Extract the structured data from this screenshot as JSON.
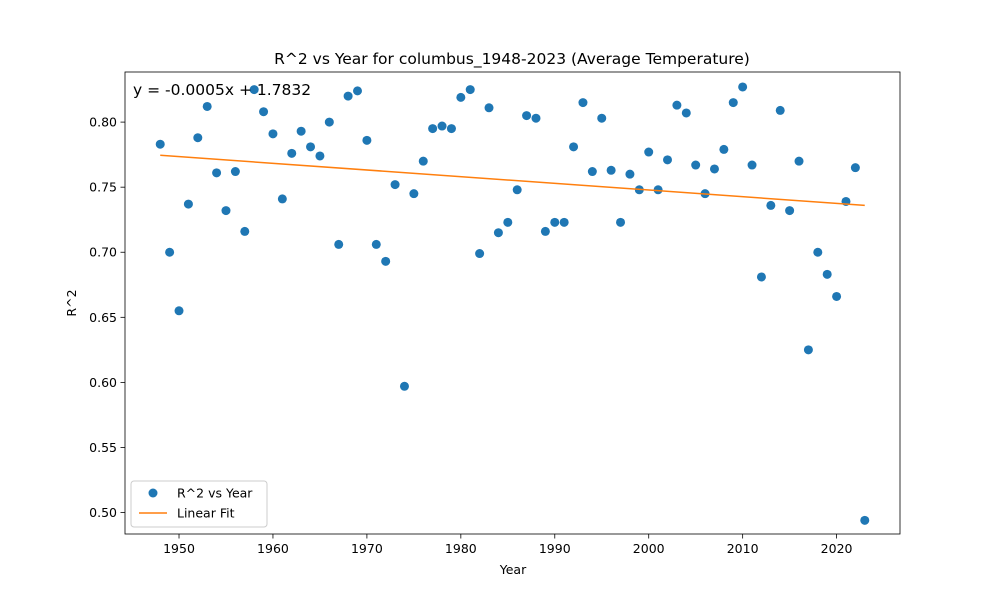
{
  "chart_data": {
    "type": "scatter",
    "title": "R^2 vs Year for columbus_1948-2023 (Average Temperature)",
    "xlabel": "Year",
    "ylabel": "R^2",
    "equation": "y = -0.0005x + 1.7832",
    "xlim": [
      1944.25,
      2026.75
    ],
    "ylim": [
      0.4835,
      0.8385
    ],
    "xticks": [
      1950,
      1960,
      1970,
      1980,
      1990,
      2000,
      2010,
      2020
    ],
    "xtick_labels": [
      "1950",
      "1960",
      "1970",
      "1980",
      "1990",
      "2000",
      "2010",
      "2020"
    ],
    "yticks": [
      0.5,
      0.55,
      0.6,
      0.65,
      0.7,
      0.75,
      0.8
    ],
    "ytick_labels": [
      "0.50",
      "0.55",
      "0.60",
      "0.65",
      "0.70",
      "0.75",
      "0.80"
    ],
    "grid": false,
    "legend_position": "lower-left",
    "series": [
      {
        "name": "R^2 vs Year",
        "kind": "scatter",
        "color": "#1f77b4",
        "x": [
          1948,
          1949,
          1950,
          1951,
          1952,
          1953,
          1954,
          1955,
          1956,
          1957,
          1958,
          1959,
          1960,
          1961,
          1962,
          1963,
          1964,
          1965,
          1966,
          1967,
          1968,
          1969,
          1970,
          1971,
          1972,
          1973,
          1974,
          1975,
          1976,
          1977,
          1978,
          1979,
          1980,
          1981,
          1982,
          1983,
          1984,
          1985,
          1986,
          1987,
          1988,
          1989,
          1990,
          1991,
          1992,
          1993,
          1994,
          1995,
          1996,
          1997,
          1998,
          1999,
          2000,
          2001,
          2002,
          2003,
          2004,
          2005,
          2006,
          2007,
          2008,
          2009,
          2010,
          2011,
          2012,
          2013,
          2014,
          2015,
          2016,
          2017,
          2018,
          2019,
          2020,
          2021,
          2022,
          2023
        ],
        "y": [
          0.783,
          0.7,
          0.655,
          0.737,
          0.788,
          0.812,
          0.761,
          0.732,
          0.762,
          0.716,
          0.825,
          0.808,
          0.791,
          0.741,
          0.776,
          0.793,
          0.781,
          0.774,
          0.8,
          0.706,
          0.82,
          0.824,
          0.786,
          0.706,
          0.693,
          0.752,
          0.597,
          0.745,
          0.77,
          0.795,
          0.797,
          0.795,
          0.819,
          0.825,
          0.699,
          0.811,
          0.715,
          0.723,
          0.748,
          0.805,
          0.803,
          0.716,
          0.723,
          0.723,
          0.781,
          0.815,
          0.762,
          0.803,
          0.763,
          0.723,
          0.76,
          0.748,
          0.777,
          0.748,
          0.771,
          0.813,
          0.807,
          0.767,
          0.745,
          0.764,
          0.779,
          0.815,
          0.827,
          0.767,
          0.681,
          0.736,
          0.809,
          0.732,
          0.77,
          0.625,
          0.7,
          0.683,
          0.666,
          0.739,
          0.765,
          0.494
        ]
      },
      {
        "name": "Linear Fit",
        "kind": "line",
        "color": "#ff7f0e",
        "x": [
          1948,
          2023
        ],
        "y": [
          0.7745,
          0.736
        ]
      }
    ]
  }
}
